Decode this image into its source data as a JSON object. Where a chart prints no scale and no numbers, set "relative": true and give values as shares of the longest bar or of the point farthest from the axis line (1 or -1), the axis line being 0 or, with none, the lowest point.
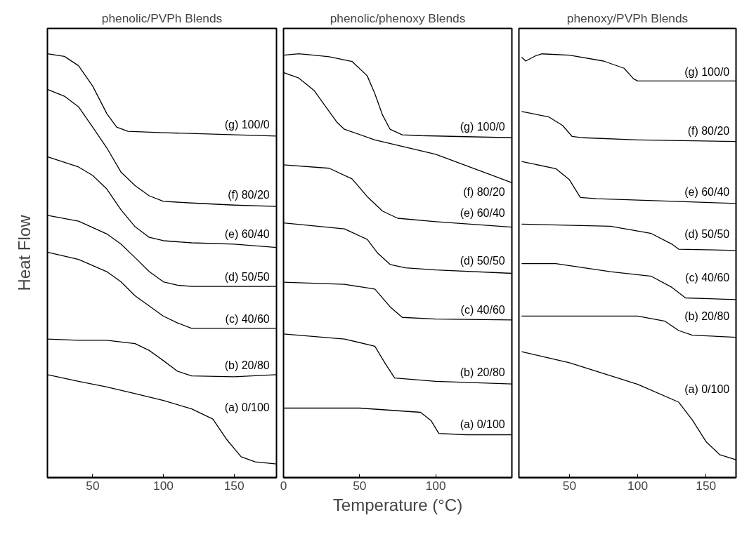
{
  "chart_data": [
    {
      "type": "line",
      "title": "phenolic/PVPh Blends",
      "ylabel": "Heat Flow",
      "relative": true,
      "xlim": [
        18,
        180
      ],
      "xticks": [
        50,
        100,
        150
      ],
      "tick_labels": "x",
      "grid": false,
      "legend": false,
      "line_style": "solid",
      "marker": "none",
      "series": [
        {
          "name": "(g) 100/0",
          "color": "#000000",
          "x": [
            18,
            30,
            40,
            50,
            60,
            67,
            75,
            100,
            180
          ],
          "values": [
            1.0,
            0.994,
            0.972,
            0.924,
            0.859,
            0.827,
            0.817,
            0.814,
            0.806
          ]
        },
        {
          "name": "(f) 80/20",
          "color": "#000000",
          "x": [
            18,
            30,
            40,
            50,
            60,
            70,
            80,
            90,
            100,
            120,
            150,
            180
          ],
          "values": [
            0.916,
            0.9,
            0.875,
            0.827,
            0.778,
            0.721,
            0.689,
            0.665,
            0.652,
            0.648,
            0.643,
            0.64
          ]
        },
        {
          "name": "(e) 60/40",
          "color": "#000000",
          "x": [
            18,
            40,
            50,
            60,
            70,
            80,
            90,
            100,
            120,
            150,
            180
          ],
          "values": [
            0.757,
            0.733,
            0.713,
            0.681,
            0.632,
            0.592,
            0.567,
            0.559,
            0.554,
            0.551,
            0.543
          ]
        },
        {
          "name": "(d) 50/50",
          "color": "#000000",
          "x": [
            18,
            40,
            60,
            70,
            80,
            90,
            100,
            110,
            120,
            150,
            180
          ],
          "values": [
            0.619,
            0.605,
            0.575,
            0.551,
            0.519,
            0.486,
            0.462,
            0.454,
            0.451,
            0.451,
            0.451
          ]
        },
        {
          "name": "(c) 40/60",
          "color": "#000000",
          "x": [
            18,
            40,
            60,
            70,
            80,
            90,
            100,
            110,
            120,
            180
          ],
          "values": [
            0.532,
            0.515,
            0.486,
            0.462,
            0.429,
            0.405,
            0.381,
            0.365,
            0.352,
            0.352
          ]
        },
        {
          "name": "(b) 20/80",
          "color": "#000000",
          "x": [
            18,
            40,
            60,
            80,
            90,
            100,
            110,
            120,
            150,
            180
          ],
          "values": [
            0.327,
            0.324,
            0.324,
            0.316,
            0.3,
            0.276,
            0.251,
            0.24,
            0.238,
            0.243
          ]
        },
        {
          "name": "(a) 0/100",
          "color": "#000000",
          "x": [
            18,
            40,
            60,
            80,
            100,
            120,
            135,
            145,
            155,
            165,
            180
          ],
          "values": [
            0.243,
            0.227,
            0.214,
            0.198,
            0.182,
            0.162,
            0.138,
            0.089,
            0.049,
            0.037,
            0.032
          ]
        }
      ]
    },
    {
      "type": "line",
      "title": "phenolic/phenoxy Blends",
      "xlabel": "Temperature (°C)",
      "relative": true,
      "xlim": [
        0,
        150
      ],
      "xticks": [
        0,
        50,
        100
      ],
      "tick_labels": "x",
      "grid": false,
      "legend": false,
      "line_style": "solid",
      "marker": "none",
      "series": [
        {
          "name": "(g) 100/0",
          "color": "#000000",
          "x": [
            0,
            10,
            20,
            30,
            45,
            55,
            60,
            65,
            70,
            78,
            90,
            150
          ],
          "values": [
            0.997,
            1.0,
            0.997,
            0.993,
            0.982,
            0.948,
            0.906,
            0.856,
            0.822,
            0.809,
            0.807,
            0.802
          ]
        },
        {
          "name": "(f) 80/20",
          "color": "#000000",
          "x": [
            0,
            10,
            20,
            30,
            35,
            40,
            60,
            100,
            150
          ],
          "values": [
            0.956,
            0.943,
            0.914,
            0.864,
            0.839,
            0.822,
            0.797,
            0.763,
            0.696
          ]
        },
        {
          "name": "(e) 60/40",
          "color": "#000000",
          "x": [
            0,
            30,
            45,
            55,
            65,
            75,
            100,
            150
          ],
          "values": [
            0.738,
            0.73,
            0.705,
            0.663,
            0.629,
            0.612,
            0.604,
            0.591
          ]
        },
        {
          "name": "(d) 50/50",
          "color": "#000000",
          "x": [
            0,
            40,
            55,
            62,
            70,
            80,
            100,
            150
          ],
          "values": [
            0.601,
            0.587,
            0.562,
            0.529,
            0.503,
            0.495,
            0.49,
            0.482
          ]
        },
        {
          "name": "(c) 40/60",
          "color": "#000000",
          "x": [
            0,
            40,
            60,
            70,
            78,
            100,
            150
          ],
          "values": [
            0.461,
            0.456,
            0.445,
            0.403,
            0.378,
            0.374,
            0.372
          ]
        },
        {
          "name": "(b) 20/80",
          "color": "#000000",
          "x": [
            0,
            40,
            60,
            67,
            73,
            100,
            150
          ],
          "values": [
            0.339,
            0.327,
            0.31,
            0.268,
            0.235,
            0.227,
            0.221
          ]
        },
        {
          "name": "(a) 0/100",
          "color": "#000000",
          "x": [
            0,
            50,
            90,
            97,
            102,
            120,
            150
          ],
          "values": [
            0.164,
            0.164,
            0.154,
            0.134,
            0.104,
            0.101,
            0.101
          ]
        }
      ]
    },
    {
      "type": "line",
      "title": "phenoxy/PVPh Blends",
      "relative": true,
      "xlim": [
        13,
        172
      ],
      "xticks": [
        50,
        100,
        150
      ],
      "tick_labels": "x",
      "grid": false,
      "legend": false,
      "line_style": "solid",
      "marker": "none",
      "series": [
        {
          "name": "(g) 100/0",
          "color": "#000000",
          "x": [
            15,
            18,
            25,
            30,
            50,
            75,
            90,
            97,
            100,
            150,
            172
          ],
          "values": [
            0.992,
            0.983,
            0.995,
            1.0,
            0.997,
            0.983,
            0.966,
            0.941,
            0.936,
            0.936,
            0.936
          ]
        },
        {
          "name": "(f) 80/20",
          "color": "#000000",
          "x": [
            15,
            35,
            45,
            52,
            60,
            100,
            172
          ],
          "values": [
            0.864,
            0.851,
            0.831,
            0.805,
            0.802,
            0.797,
            0.793
          ]
        },
        {
          "name": "(e) 60/40",
          "color": "#000000",
          "x": [
            15,
            40,
            50,
            58,
            70,
            172
          ],
          "values": [
            0.746,
            0.729,
            0.703,
            0.661,
            0.658,
            0.647
          ]
        },
        {
          "name": "(d) 50/50",
          "color": "#000000",
          "x": [
            15,
            80,
            110,
            125,
            130,
            172
          ],
          "values": [
            0.598,
            0.593,
            0.576,
            0.551,
            0.539,
            0.536
          ]
        },
        {
          "name": "(c) 40/60",
          "color": "#000000",
          "x": [
            15,
            40,
            80,
            110,
            125,
            135,
            172
          ],
          "values": [
            0.505,
            0.505,
            0.486,
            0.475,
            0.449,
            0.424,
            0.42
          ]
        },
        {
          "name": "(b) 20/80",
          "color": "#000000",
          "x": [
            15,
            100,
            120,
            130,
            140,
            172
          ],
          "values": [
            0.381,
            0.381,
            0.369,
            0.347,
            0.336,
            0.331
          ]
        },
        {
          "name": "(a) 0/100",
          "color": "#000000",
          "x": [
            15,
            50,
            100,
            130,
            140,
            150,
            160,
            172
          ],
          "values": [
            0.297,
            0.271,
            0.22,
            0.178,
            0.136,
            0.085,
            0.054,
            0.042
          ]
        }
      ]
    }
  ]
}
